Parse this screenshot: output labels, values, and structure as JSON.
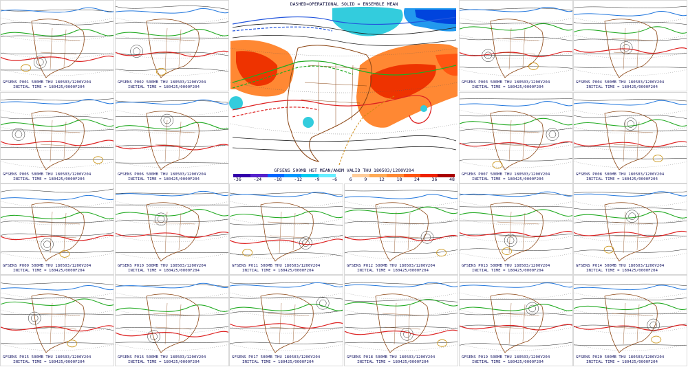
{
  "center": {
    "title": "DASHED=OPERATIONAL  SOLID = ENSEMBLE MEAN",
    "caption": "GFSENS 500MB HGT MEAN/ANOM VALID THU 180503/1200V204",
    "colorbar_ticks": [
      "-36",
      "-24",
      "-18",
      "-12",
      "-9",
      "-6",
      "6",
      "9",
      "12",
      "18",
      "24",
      "36",
      "48"
    ],
    "colorbar_colors": [
      "#3300aa",
      "#5522cc",
      "#0066ff",
      "#0099ff",
      "#00ccee",
      "#66eeff",
      "#ffffff",
      "#ffcc99",
      "#ffaa55",
      "#ff8833",
      "#ff5511",
      "#ee2200",
      "#aa0000"
    ]
  },
  "panels": [
    {
      "line1": "GFSENS P001 500MB THU 180503/1200V204",
      "line2": "INITIAL TIME = 180425/0000F204"
    },
    {
      "line1": "GFSENS P002 500MB THU 180503/1200V204",
      "line2": "INITIAL TIME = 180425/0000F204"
    },
    {
      "line1": "GFSENS P003 500MB THU 180503/1200V204",
      "line2": "INITIAL TIME = 180425/0000F204"
    },
    {
      "line1": "GFSENS P004 500MB THU 180503/1200V204",
      "line2": "INITIAL TIME = 180425/0000F204"
    },
    {
      "line1": "GFSENS P005 500MB THU 180503/1200V204",
      "line2": "INITIAL TIME = 180425/0000F204"
    },
    {
      "line1": "GFSENS P006 500MB THU 180503/1200V204",
      "line2": "INITIAL TIME = 180425/0000F204"
    },
    {
      "line1": "GFSENS P007 500MB THU 180503/1200V204",
      "line2": "INITIAL TIME = 180425/0000F204"
    },
    {
      "line1": "GFSENS P008 500MB THU 180503/1200V204",
      "line2": "INITIAL TIME = 180425/0000F204"
    },
    {
      "line1": "GFSENS P009 500MB THU 180503/1200V204",
      "line2": "INITIAL TIME = 180425/0000F204"
    },
    {
      "line1": "GFSENS P010 500MB THU 180503/1200V204",
      "line2": "INITIAL TIME = 180425/0000F204"
    },
    {
      "line1": "GFSENS P011 500MB THU 180503/1200V204",
      "line2": "INITIAL TIME = 180425/0000F204"
    },
    {
      "line1": "GFSENS P012 500MB THU 180503/1200V204",
      "line2": "INITIAL TIME = 180425/0000F204"
    },
    {
      "line1": "GFSENS P013 500MB THU 180503/1200V204",
      "line2": "INITIAL TIME = 180425/0000F204"
    },
    {
      "line1": "GFSENS P014 500MB THU 180503/1200V204",
      "line2": "INITIAL TIME = 180425/0000F204"
    },
    {
      "line1": "GFSENS P015 500MB THU 180503/1200V204",
      "line2": "INITIAL TIME = 180425/0000F204"
    },
    {
      "line1": "GFSENS P016 500MB THU 180503/1200V204",
      "line2": "INITIAL TIME = 180425/0000F204"
    },
    {
      "line1": "GFSENS P017 500MB THU 180503/1200V204",
      "line2": "INITIAL TIME = 180425/0000F204"
    },
    {
      "line1": "GFSENS P018 500MB THU 180503/1200V204",
      "line2": "INITIAL TIME = 180425/0000F204"
    },
    {
      "line1": "GFSENS P019 500MB THU 180503/1200V204",
      "line2": "INITIAL TIME = 180425/0000F204"
    },
    {
      "line1": "GFSENS P020 500MB THU 180503/1200V204",
      "line2": "INITIAL TIME = 180425/0000F204"
    }
  ]
}
